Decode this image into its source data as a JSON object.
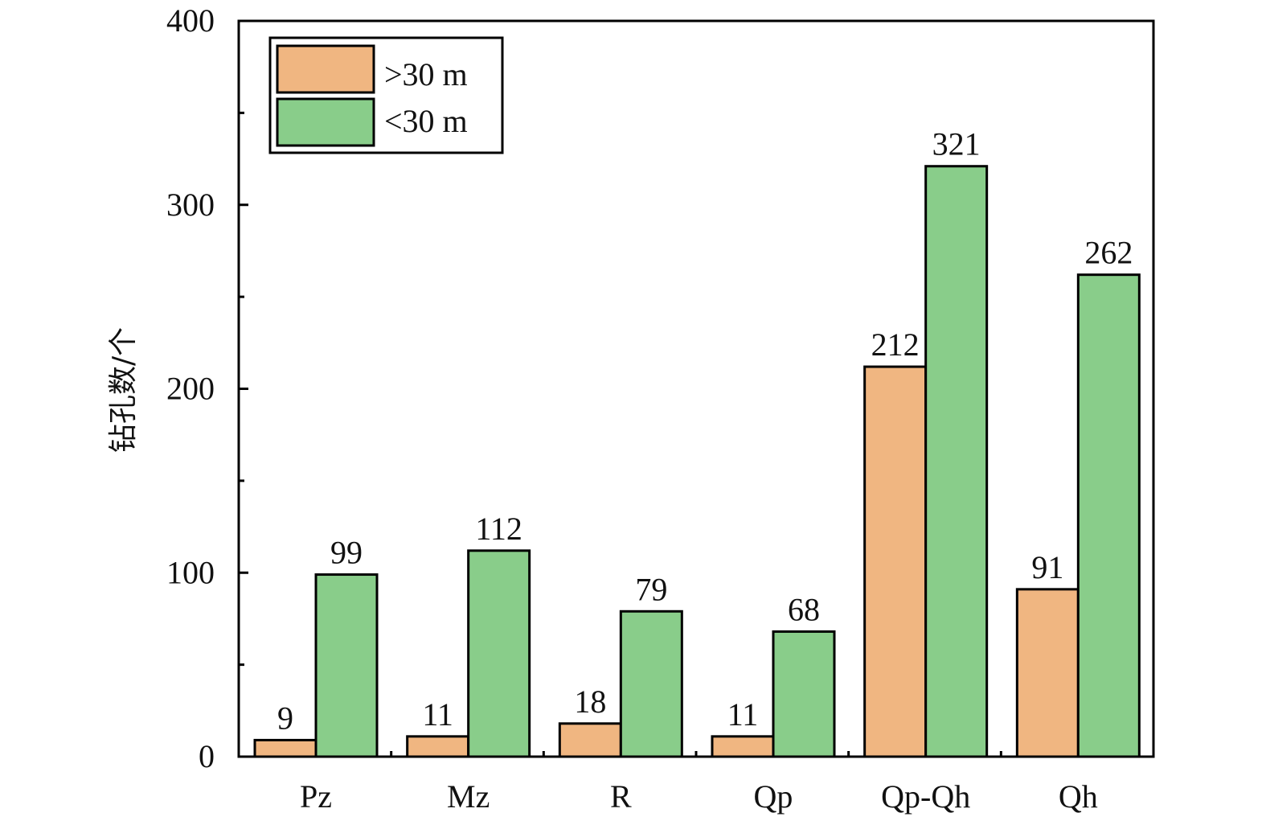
{
  "chart_data": {
    "type": "bar",
    "categories": [
      "Pz",
      "Mz",
      "R",
      "Qp",
      "Qp-Qh",
      "Qh"
    ],
    "series": [
      {
        "name": ">30 m",
        "color": "#F0B681",
        "values": [
          9,
          11,
          18,
          11,
          212,
          91
        ]
      },
      {
        "name": "<30 m",
        "color": "#89CD8A",
        "values": [
          99,
          112,
          79,
          68,
          321,
          262
        ]
      }
    ],
    "xlabel": "",
    "ylabel": "钻孔数/个",
    "ylim": [
      0,
      400
    ],
    "yticks": [
      0,
      100,
      200,
      300,
      400
    ],
    "grid": false,
    "legend_position": "top-left",
    "data_labels": true
  }
}
